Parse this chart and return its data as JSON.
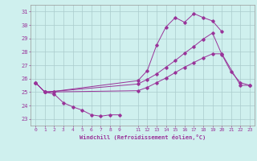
{
  "xlabel": "Windchill (Refroidissement éolien,°C)",
  "background_color": "#cff0ee",
  "grid_color": "#aacccc",
  "line_color": "#993399",
  "xlim": [
    -0.5,
    23.5
  ],
  "ylim": [
    22.5,
    31.5
  ],
  "yticks": [
    23,
    24,
    25,
    26,
    27,
    28,
    29,
    30,
    31
  ],
  "xtick_vals": [
    0,
    1,
    2,
    3,
    4,
    5,
    6,
    7,
    8,
    9,
    11,
    12,
    13,
    14,
    15,
    16,
    17,
    18,
    19,
    20,
    21,
    22,
    23
  ],
  "xtick_labels": [
    "0",
    "1",
    "2",
    "3",
    "4",
    "5",
    "6",
    "7",
    "8",
    "9",
    "11",
    "12",
    "13",
    "14",
    "15",
    "16",
    "17",
    "18",
    "19",
    "20",
    "21",
    "22",
    "23"
  ],
  "series": [
    {
      "x": [
        0,
        1,
        2,
        3,
        4,
        5,
        6,
        7,
        8,
        9
      ],
      "y": [
        25.7,
        25.0,
        24.85,
        24.2,
        23.9,
        23.65,
        23.3,
        23.2,
        23.3,
        23.3
      ]
    },
    {
      "x": [
        1,
        11,
        12,
        13,
        14,
        15,
        16,
        17,
        18,
        19,
        20,
        22,
        23
      ],
      "y": [
        25.0,
        25.1,
        25.35,
        25.7,
        26.05,
        26.45,
        26.85,
        27.2,
        27.55,
        27.85,
        27.85,
        25.5,
        25.5
      ]
    },
    {
      "x": [
        0,
        1,
        2,
        11,
        12,
        13,
        14,
        15,
        16,
        17,
        18,
        19,
        20,
        21,
        22,
        23
      ],
      "y": [
        25.7,
        25.0,
        25.05,
        25.6,
        25.95,
        26.35,
        26.85,
        27.35,
        27.9,
        28.4,
        28.95,
        29.4,
        27.8,
        26.5,
        25.7,
        25.5
      ]
    },
    {
      "x": [
        0,
        1,
        2,
        11,
        12,
        13,
        14,
        15,
        16,
        17,
        18,
        19,
        20
      ],
      "y": [
        25.7,
        25.0,
        25.05,
        25.85,
        26.6,
        28.5,
        29.85,
        30.55,
        30.2,
        30.85,
        30.55,
        30.3,
        29.5
      ]
    }
  ]
}
